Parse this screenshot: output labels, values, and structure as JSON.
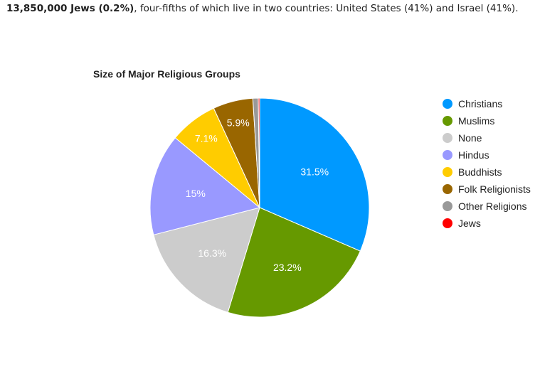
{
  "intro": {
    "bold_text": "13,850,000 Jews (0.2%)",
    "rest_text": ", four-fifths of which live in two countries: United States (41%) and Israel (41%)."
  },
  "chart_data": {
    "type": "pie",
    "title": "Size of Major Religious Groups",
    "legend_position": "right",
    "slices": [
      {
        "label": "Christians",
        "value": 31.5,
        "display": "31.5%",
        "color": "#0099ff"
      },
      {
        "label": "Muslims",
        "value": 23.2,
        "display": "23.2%",
        "color": "#669900"
      },
      {
        "label": "None",
        "value": 16.3,
        "display": "16.3%",
        "color": "#cccccc"
      },
      {
        "label": "Hindus",
        "value": 15,
        "display": "15%",
        "color": "#9999ff"
      },
      {
        "label": "Buddhists",
        "value": 7.1,
        "display": "7.1%",
        "color": "#ffcc00"
      },
      {
        "label": "Folk Religionists",
        "value": 5.9,
        "display": "5.9%",
        "color": "#996600"
      },
      {
        "label": "Other Religions",
        "value": 0.8,
        "display": "",
        "color": "#999999"
      },
      {
        "label": "Jews",
        "value": 0.2,
        "display": "",
        "color": "#ff0000"
      }
    ]
  }
}
